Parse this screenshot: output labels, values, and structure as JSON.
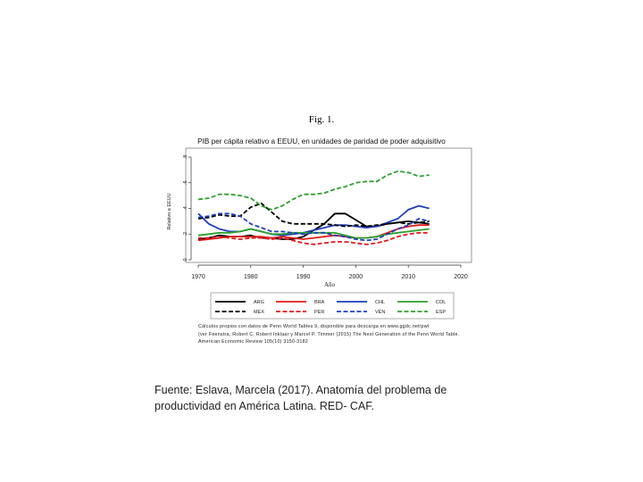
{
  "figure": {
    "caption": "Fig. 1.",
    "notes": [
      "Cálculos propios con datos de Penn World Tables 9, disponible para descarga en www.ggdc.net/pwt",
      "(ver Feenstra, Robert C. Robert Inklaar y Marcel P. Timmer (2015) The Next Generation of the Penn World Table.",
      "American Economic Review 105(10) 3150-3182"
    ],
    "source": [
      "Fuente: Eslava, Marcela (2017). Anatomía del problema de",
      "productividad en América Latina. RED- CAF."
    ]
  },
  "chart_data": {
    "type": "line",
    "title": "PIB per cápita relativo a EEUU, en unidades de paridad de poder adquisitivo",
    "xlabel": "Año",
    "ylabel": "Relativo a EEUU",
    "xlim": [
      1970,
      2020
    ],
    "ylim": [
      0,
      0.8
    ],
    "xticks": [
      1970,
      1980,
      1990,
      2000,
      2010,
      2020
    ],
    "yticks": [
      0,
      0.2,
      0.4,
      0.6,
      0.8
    ],
    "xtick_labels": [
      "1970",
      "1980",
      "1990",
      "2000",
      "2010",
      "2020"
    ],
    "ytick_labels": [
      "0",
      ".2",
      ".4",
      ".6",
      ".8"
    ],
    "grid": false,
    "legend_position": "bottom",
    "series": [
      {
        "name": "ARG",
        "color": "#000000",
        "dash": "solid",
        "x": [
          1970,
          1972,
          1974,
          1976,
          1978,
          1980,
          1982,
          1984,
          1986,
          1988,
          1990,
          1992,
          1994,
          1996,
          1998,
          2000,
          2002,
          2004,
          2006,
          2008,
          2010,
          2012,
          2014
        ],
        "y": [
          0.16,
          0.17,
          0.19,
          0.18,
          0.18,
          0.19,
          0.17,
          0.17,
          0.16,
          0.16,
          0.18,
          0.23,
          0.28,
          0.36,
          0.36,
          0.31,
          0.26,
          0.26,
          0.28,
          0.29,
          0.3,
          0.29,
          0.28
        ]
      },
      {
        "name": "BRA",
        "color": "#e31a1c",
        "dash": "solid",
        "x": [
          1970,
          1972,
          1974,
          1976,
          1978,
          1980,
          1982,
          1984,
          1986,
          1988,
          1990,
          1992,
          1994,
          1996,
          1998,
          2000,
          2002,
          2004,
          2006,
          2008,
          2010,
          2012,
          2014
        ],
        "y": [
          0.15,
          0.16,
          0.17,
          0.18,
          0.18,
          0.18,
          0.18,
          0.17,
          0.18,
          0.17,
          0.16,
          0.17,
          0.18,
          0.19,
          0.18,
          0.17,
          0.17,
          0.18,
          0.21,
          0.24,
          0.26,
          0.27,
          0.27
        ]
      },
      {
        "name": "CHL",
        "color": "#1f3fbf",
        "dash": "solid",
        "x": [
          1970,
          1972,
          1974,
          1976,
          1978,
          1980,
          1982,
          1984,
          1986,
          1988,
          1990,
          1992,
          1994,
          1996,
          1998,
          2000,
          2002,
          2004,
          2006,
          2008,
          2010,
          2012,
          2014
        ],
        "y": [
          0.36,
          0.28,
          0.24,
          0.22,
          0.22,
          0.24,
          0.22,
          0.2,
          0.19,
          0.2,
          0.21,
          0.23,
          0.25,
          0.27,
          0.27,
          0.26,
          0.25,
          0.26,
          0.29,
          0.32,
          0.39,
          0.42,
          0.4
        ]
      },
      {
        "name": "COL",
        "color": "#2ca02c",
        "dash": "solid",
        "x": [
          1970,
          1972,
          1974,
          1976,
          1978,
          1980,
          1982,
          1984,
          1986,
          1988,
          1990,
          1992,
          1994,
          1996,
          1998,
          2000,
          2002,
          2004,
          2006,
          2008,
          2010,
          2012,
          2014
        ],
        "y": [
          0.19,
          0.2,
          0.21,
          0.21,
          0.22,
          0.24,
          0.22,
          0.2,
          0.2,
          0.21,
          0.21,
          0.21,
          0.21,
          0.21,
          0.19,
          0.17,
          0.17,
          0.18,
          0.2,
          0.21,
          0.22,
          0.23,
          0.24
        ]
      },
      {
        "name": "MEX",
        "color": "#000000",
        "dash": "dashed",
        "x": [
          1970,
          1972,
          1974,
          1976,
          1978,
          1980,
          1982,
          1984,
          1986,
          1988,
          1990,
          1992,
          1994,
          1996,
          1998,
          2000,
          2002,
          2004,
          2006,
          2008,
          2010,
          2012,
          2014
        ],
        "y": [
          0.32,
          0.33,
          0.35,
          0.34,
          0.34,
          0.41,
          0.44,
          0.37,
          0.3,
          0.28,
          0.28,
          0.28,
          0.28,
          0.27,
          0.26,
          0.27,
          0.26,
          0.27,
          0.28,
          0.29,
          0.28,
          0.29,
          0.3
        ]
      },
      {
        "name": "PER",
        "color": "#e31a1c",
        "dash": "dashed",
        "x": [
          1970,
          1972,
          1974,
          1976,
          1978,
          1980,
          1982,
          1984,
          1986,
          1988,
          1990,
          1992,
          1994,
          1996,
          1998,
          2000,
          2002,
          2004,
          2006,
          2008,
          2010,
          2012,
          2014
        ],
        "y": [
          0.17,
          0.17,
          0.18,
          0.17,
          0.16,
          0.17,
          0.17,
          0.16,
          0.17,
          0.15,
          0.13,
          0.12,
          0.13,
          0.14,
          0.14,
          0.13,
          0.12,
          0.13,
          0.15,
          0.18,
          0.2,
          0.21,
          0.21
        ]
      },
      {
        "name": "VEN",
        "color": "#1f3fbf",
        "dash": "dashed",
        "x": [
          1970,
          1972,
          1974,
          1976,
          1978,
          1980,
          1982,
          1984,
          1986,
          1988,
          1990,
          1992,
          1994,
          1996,
          1998,
          2000,
          2002,
          2004,
          2006,
          2008,
          2010,
          2012,
          2014
        ],
        "y": [
          0.33,
          0.34,
          0.36,
          0.36,
          0.34,
          0.28,
          0.25,
          0.22,
          0.22,
          0.21,
          0.2,
          0.21,
          0.21,
          0.19,
          0.18,
          0.16,
          0.15,
          0.16,
          0.2,
          0.24,
          0.27,
          0.32,
          0.3
        ]
      },
      {
        "name": "ESP",
        "color": "#2ca02c",
        "dash": "dashed",
        "x": [
          1970,
          1972,
          1974,
          1976,
          1978,
          1980,
          1982,
          1984,
          1986,
          1988,
          1990,
          1992,
          1994,
          1996,
          1998,
          2000,
          2002,
          2004,
          2006,
          2008,
          2010,
          2012,
          2014
        ],
        "y": [
          0.47,
          0.48,
          0.51,
          0.51,
          0.5,
          0.48,
          0.42,
          0.39,
          0.42,
          0.47,
          0.51,
          0.51,
          0.52,
          0.55,
          0.57,
          0.6,
          0.61,
          0.61,
          0.66,
          0.69,
          0.68,
          0.65,
          0.66
        ]
      }
    ]
  }
}
